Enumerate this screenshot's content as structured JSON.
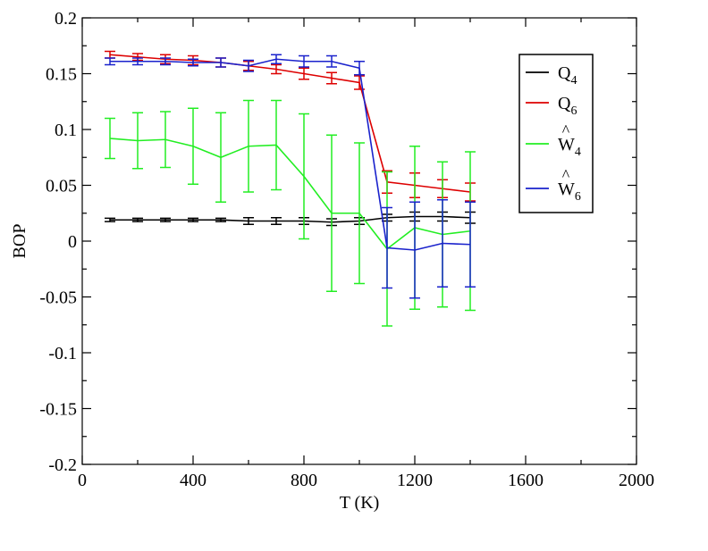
{
  "chart_data": {
    "type": "line",
    "title": "",
    "xlabel": "T (K)",
    "ylabel": "BOP",
    "xlim": [
      0,
      2000
    ],
    "ylim": [
      -0.2,
      0.2
    ],
    "x_ticks": [
      0,
      400,
      800,
      1200,
      1600,
      2000
    ],
    "x_tick_labels": [
      "0",
      "400",
      "800",
      "1200",
      "1600",
      "2000"
    ],
    "y_ticks": [
      -0.2,
      -0.15,
      -0.1,
      -0.05,
      0,
      0.05,
      0.1,
      0.15,
      0.2
    ],
    "y_tick_labels": [
      "-0.2",
      "-0.15",
      "-0.1",
      "-0.05",
      "0",
      "0.05",
      "0.1",
      "0.15",
      "0.2"
    ],
    "grid": false,
    "legend_position": "top-right",
    "x": [
      100,
      200,
      300,
      400,
      500,
      600,
      700,
      800,
      900,
      1000,
      1100,
      1200,
      1300,
      1400
    ],
    "series": [
      {
        "name": "Q4",
        "label_main": "Q",
        "label_sub": "4",
        "hat": false,
        "color": "#000000",
        "values": [
          0.019,
          0.019,
          0.019,
          0.019,
          0.019,
          0.018,
          0.018,
          0.018,
          0.017,
          0.018,
          0.021,
          0.022,
          0.022,
          0.021
        ],
        "errors": [
          0.0015,
          0.0015,
          0.0015,
          0.0015,
          0.0015,
          0.003,
          0.003,
          0.003,
          0.003,
          0.003,
          0.003,
          0.004,
          0.004,
          0.005
        ]
      },
      {
        "name": "Q6",
        "label_main": "Q",
        "label_sub": "6",
        "hat": false,
        "color": "#dd0000",
        "values": [
          0.167,
          0.165,
          0.163,
          0.162,
          0.16,
          0.157,
          0.154,
          0.15,
          0.146,
          0.142,
          0.053,
          0.05,
          0.047,
          0.044
        ],
        "errors": [
          0.003,
          0.003,
          0.004,
          0.004,
          0.004,
          0.004,
          0.004,
          0.005,
          0.005,
          0.006,
          0.01,
          0.011,
          0.008,
          0.008
        ]
      },
      {
        "name": "W4",
        "label_main": "W",
        "label_sub": "4",
        "hat": true,
        "color": "#22ee22",
        "values": [
          0.092,
          0.09,
          0.091,
          0.085,
          0.075,
          0.085,
          0.086,
          0.058,
          0.025,
          0.025,
          -0.007,
          0.012,
          0.006,
          0.009
        ],
        "errors": [
          0.018,
          0.025,
          0.025,
          0.034,
          0.04,
          0.041,
          0.04,
          0.056,
          0.07,
          0.063,
          0.069,
          0.073,
          0.065,
          0.071
        ]
      },
      {
        "name": "W6",
        "label_main": "W",
        "label_sub": "6",
        "hat": true,
        "color": "#1a22cc",
        "values": [
          0.161,
          0.161,
          0.161,
          0.16,
          0.16,
          0.157,
          0.163,
          0.161,
          0.161,
          0.155,
          -0.006,
          -0.008,
          -0.002,
          -0.003
        ],
        "errors": [
          0.003,
          0.003,
          0.003,
          0.003,
          0.004,
          0.005,
          0.004,
          0.005,
          0.005,
          0.006,
          0.036,
          0.043,
          0.039,
          0.038
        ]
      }
    ]
  }
}
